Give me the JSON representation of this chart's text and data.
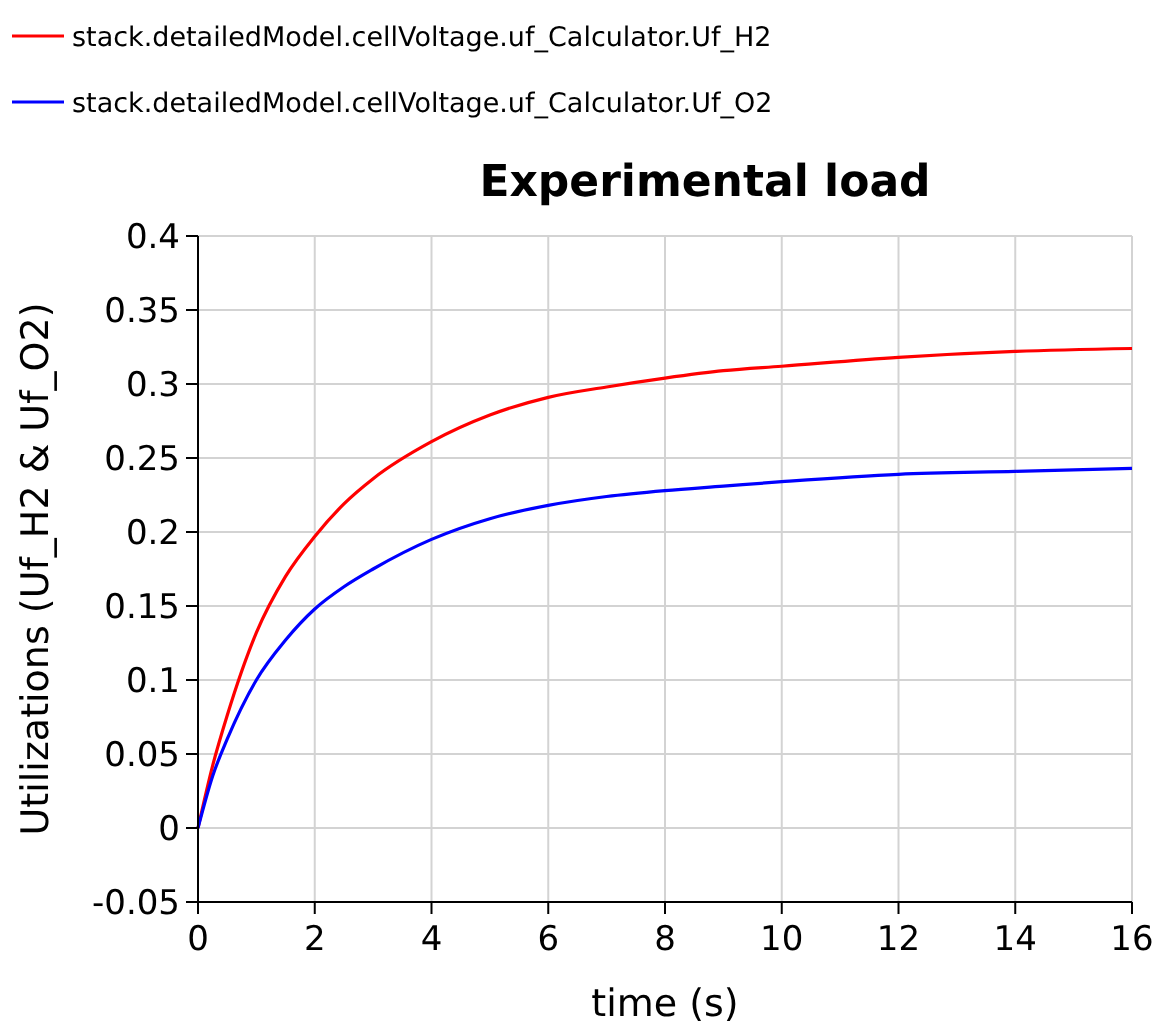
{
  "chart_data": {
    "type": "line",
    "title": "Experimental load",
    "xlabel": "time (s)",
    "ylabel": "Utilizations (Uf_H2 & Uf_O2)",
    "x": [
      0,
      0.25,
      0.5,
      1,
      1.5,
      2,
      2.5,
      3,
      4,
      5,
      6,
      7,
      8,
      9,
      10,
      12,
      14,
      16
    ],
    "series": [
      {
        "name": "stack.detailedModel.cellVoltage.uf_Calculator.Uf_H2",
        "color": "#ff0000",
        "values": [
          0,
          0.042,
          0.076,
          0.132,
          0.17,
          0.197,
          0.219,
          0.236,
          0.261,
          0.279,
          0.291,
          0.298,
          0.304,
          0.309,
          0.312,
          0.318,
          0.322,
          0.324
        ]
      },
      {
        "name": "stack.detailedModel.cellVoltage.uf_Calculator.Uf_O2",
        "color": "#0000ff",
        "values": [
          0,
          0.035,
          0.06,
          0.1,
          0.127,
          0.148,
          0.163,
          0.175,
          0.195,
          0.209,
          0.218,
          0.224,
          0.228,
          0.231,
          0.234,
          0.239,
          0.241,
          0.243
        ]
      }
    ],
    "xlim": [
      0,
      16
    ],
    "xticks": [
      0,
      2,
      4,
      6,
      8,
      10,
      12,
      14,
      16
    ],
    "ylim": [
      -0.05,
      0.4
    ],
    "yticks": [
      -0.05,
      0,
      0.05,
      0.1,
      0.15,
      0.2,
      0.25,
      0.3,
      0.35,
      0.4
    ],
    "grid": true,
    "legend": "top left",
    "line_style": "solid",
    "marker": "none"
  }
}
